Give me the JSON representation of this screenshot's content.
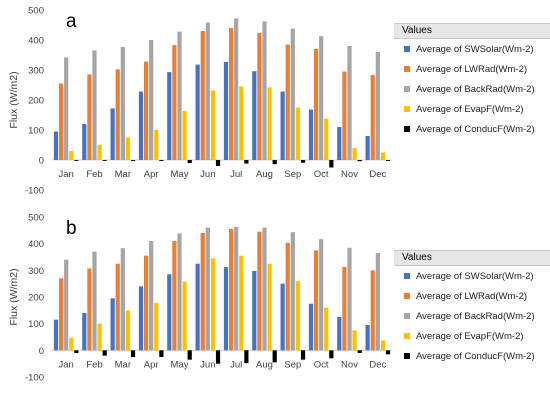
{
  "chart_data": [
    {
      "type": "bar",
      "panel_label": "a",
      "ylabel": "Flux (W/m2)",
      "ylim": [
        -100,
        500
      ],
      "yticks": [
        -100,
        0,
        100,
        200,
        300,
        400,
        500
      ],
      "legend_title": "Values",
      "legend_position": "right",
      "grid": false,
      "categories": [
        "Jan",
        "Feb",
        "Mar",
        "Apr",
        "May",
        "Jun",
        "Jul",
        "Aug",
        "Sep",
        "Oct",
        "Nov",
        "Dec"
      ],
      "series": [
        {
          "name": "Average of SWSolar(Wm-2)",
          "color": "#4472c4",
          "values": [
            95,
            120,
            172,
            228,
            293,
            318,
            327,
            296,
            228,
            168,
            110,
            80
          ]
        },
        {
          "name": "Average of LWRad(Wm-2)",
          "color": "#ed7d31",
          "values": [
            255,
            285,
            302,
            328,
            383,
            430,
            440,
            423,
            385,
            370,
            295,
            283
          ]
        },
        {
          "name": "Average of BackRad(Wm-2)",
          "color": "#a5a5a5",
          "values": [
            342,
            365,
            377,
            400,
            428,
            458,
            472,
            462,
            438,
            413,
            380,
            360
          ]
        },
        {
          "name": "Average of EvapF(Wm-2)",
          "color": "#ffc000",
          "values": [
            30,
            50,
            75,
            100,
            163,
            232,
            245,
            242,
            175,
            138,
            40,
            25
          ]
        },
        {
          "name": "Average of ConducF(Wm-2)",
          "color": "#000000",
          "values": [
            -3,
            -3,
            -3,
            -3,
            -10,
            -20,
            -12,
            -14,
            -9,
            -25,
            -4,
            -3
          ]
        }
      ]
    },
    {
      "type": "bar",
      "panel_label": "b",
      "ylabel": "Flux (W/m2)",
      "ylim": [
        -100,
        500
      ],
      "yticks": [
        -100,
        0,
        100,
        200,
        300,
        400,
        500
      ],
      "legend_title": "Values",
      "legend_position": "right",
      "grid": false,
      "categories": [
        "Jan",
        "Feb",
        "Mar",
        "Apr",
        "May",
        "Jun",
        "Jul",
        "Aug",
        "Sep",
        "Oct",
        "Nov",
        "Dec"
      ],
      "series": [
        {
          "name": "Average of SWSolar(Wm-2)",
          "color": "#4472c4",
          "values": [
            115,
            140,
            195,
            240,
            285,
            325,
            312,
            298,
            250,
            175,
            125,
            95
          ]
        },
        {
          "name": "Average of LWRad(Wm-2)",
          "color": "#ed7d31",
          "values": [
            270,
            307,
            325,
            355,
            410,
            440,
            455,
            445,
            403,
            375,
            313,
            300
          ]
        },
        {
          "name": "Average of BackRad(Wm-2)",
          "color": "#a5a5a5",
          "values": [
            340,
            370,
            383,
            410,
            438,
            460,
            463,
            460,
            443,
            417,
            385,
            365
          ]
        },
        {
          "name": "Average of EvapF(Wm-2)",
          "color": "#ffc000",
          "values": [
            47,
            100,
            150,
            178,
            258,
            345,
            355,
            325,
            260,
            160,
            75,
            37
          ]
        },
        {
          "name": "Average of ConducF(Wm-2)",
          "color": "#000000",
          "values": [
            -10,
            -20,
            -25,
            -25,
            -35,
            -50,
            -48,
            -45,
            -35,
            -30,
            -10,
            -15
          ]
        }
      ]
    }
  ]
}
